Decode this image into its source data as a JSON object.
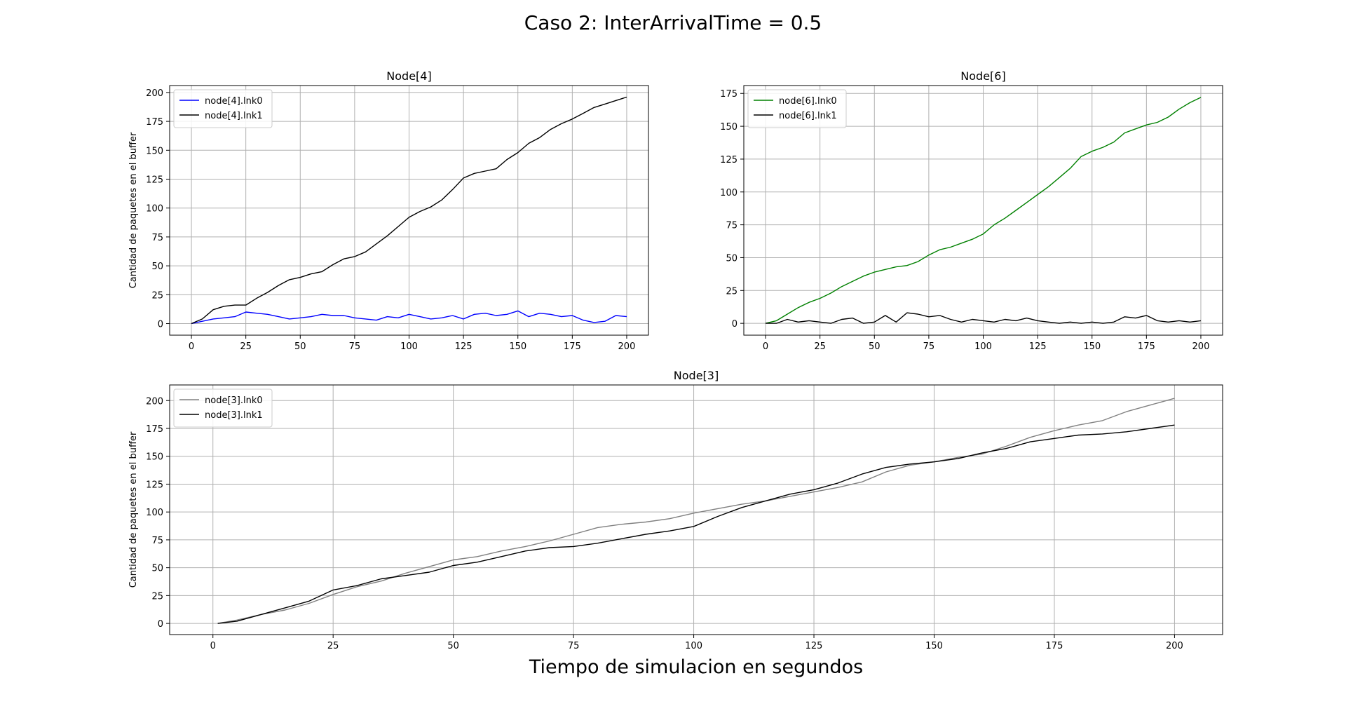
{
  "figure": {
    "suptitle": "Caso 2: InterArrivalTime = 0.5",
    "xlabel": "Tiempo de simulacion en segundos"
  },
  "chart_data": [
    {
      "type": "line",
      "title": "Node[4]",
      "xlabel": "",
      "ylabel": "Cantidad de paquetes en el buffer",
      "xlim": [
        -10,
        210
      ],
      "ylim": [
        -10,
        206
      ],
      "xticks": [
        0,
        25,
        50,
        75,
        100,
        125,
        150,
        175,
        200
      ],
      "yticks": [
        0,
        25,
        50,
        75,
        100,
        125,
        150,
        175,
        200
      ],
      "grid": true,
      "legend": "upper left",
      "series": [
        {
          "name": "node[4].lnk0",
          "color": "#0000ff",
          "x": [
            0,
            5,
            10,
            15,
            20,
            25,
            30,
            35,
            40,
            45,
            50,
            55,
            60,
            65,
            70,
            75,
            80,
            85,
            90,
            95,
            100,
            105,
            110,
            115,
            120,
            125,
            130,
            135,
            140,
            145,
            150,
            155,
            160,
            165,
            170,
            175,
            180,
            185,
            190,
            195,
            200
          ],
          "y": [
            0,
            2,
            4,
            5,
            6,
            10,
            9,
            8,
            6,
            4,
            5,
            6,
            8,
            7,
            7,
            5,
            4,
            3,
            6,
            5,
            8,
            6,
            4,
            5,
            7,
            4,
            8,
            9,
            7,
            8,
            11,
            6,
            9,
            8,
            6,
            7,
            3,
            1,
            2,
            7,
            6
          ]
        },
        {
          "name": "node[4].lnk1",
          "color": "#000000",
          "x": [
            0,
            5,
            10,
            15,
            20,
            25,
            30,
            35,
            40,
            45,
            50,
            55,
            60,
            65,
            70,
            75,
            80,
            85,
            90,
            95,
            100,
            105,
            110,
            115,
            120,
            125,
            130,
            135,
            140,
            145,
            150,
            155,
            160,
            165,
            170,
            175,
            180,
            185,
            190,
            195,
            200
          ],
          "y": [
            0,
            4,
            12,
            15,
            16,
            16,
            22,
            27,
            33,
            38,
            40,
            43,
            45,
            51,
            56,
            58,
            62,
            69,
            76,
            84,
            92,
            97,
            101,
            107,
            116,
            126,
            130,
            132,
            134,
            142,
            148,
            156,
            161,
            168,
            173,
            177,
            182,
            187,
            190,
            193,
            196
          ]
        }
      ]
    },
    {
      "type": "line",
      "title": "Node[6]",
      "xlabel": "",
      "ylabel": "",
      "xlim": [
        -10,
        210
      ],
      "ylim": [
        -9,
        181
      ],
      "xticks": [
        0,
        25,
        50,
        75,
        100,
        125,
        150,
        175,
        200
      ],
      "yticks": [
        0,
        25,
        50,
        75,
        100,
        125,
        150,
        175
      ],
      "grid": true,
      "legend": "upper left",
      "series": [
        {
          "name": "node[6].lnk0",
          "color": "#008000",
          "x": [
            0,
            5,
            10,
            15,
            20,
            25,
            30,
            35,
            40,
            45,
            50,
            55,
            60,
            65,
            70,
            75,
            80,
            85,
            90,
            95,
            100,
            105,
            110,
            115,
            120,
            125,
            130,
            135,
            140,
            145,
            150,
            155,
            160,
            165,
            170,
            175,
            180,
            185,
            190,
            195,
            200
          ],
          "y": [
            0,
            2,
            7,
            12,
            16,
            19,
            23,
            28,
            32,
            36,
            39,
            41,
            43,
            44,
            47,
            52,
            56,
            58,
            61,
            64,
            68,
            75,
            80,
            86,
            92,
            98,
            104,
            111,
            118,
            127,
            131,
            134,
            138,
            145,
            148,
            151,
            153,
            157,
            163,
            168,
            172
          ]
        },
        {
          "name": "node[6].lnk1",
          "color": "#000000",
          "x": [
            0,
            5,
            10,
            15,
            20,
            25,
            30,
            35,
            40,
            45,
            50,
            55,
            60,
            65,
            70,
            75,
            80,
            85,
            90,
            95,
            100,
            105,
            110,
            115,
            120,
            125,
            130,
            135,
            140,
            145,
            150,
            155,
            160,
            165,
            170,
            175,
            180,
            185,
            190,
            195,
            200
          ],
          "y": [
            0,
            0,
            3,
            1,
            2,
            1,
            0,
            3,
            4,
            0,
            1,
            6,
            1,
            8,
            7,
            5,
            6,
            3,
            1,
            3,
            2,
            1,
            3,
            2,
            4,
            2,
            1,
            0,
            1,
            0,
            1,
            0,
            1,
            5,
            4,
            6,
            2,
            1,
            2,
            1,
            2
          ]
        }
      ]
    },
    {
      "type": "line",
      "title": "Node[3]",
      "xlabel": "Tiempo de simulacion en segundos",
      "ylabel": "Cantidad de paquetes en el buffer",
      "xlim": [
        -9,
        210
      ],
      "ylim": [
        -10,
        214
      ],
      "xticks": [
        0,
        25,
        50,
        75,
        100,
        125,
        150,
        175,
        200
      ],
      "yticks": [
        0,
        25,
        50,
        75,
        100,
        125,
        150,
        175,
        200
      ],
      "grid": true,
      "legend": "upper left",
      "series": [
        {
          "name": "node[3].lnk0",
          "color": "#808080",
          "x": [
            1,
            5,
            10,
            15,
            20,
            25,
            30,
            35,
            40,
            45,
            50,
            55,
            60,
            65,
            70,
            75,
            80,
            85,
            90,
            95,
            100,
            105,
            110,
            115,
            120,
            125,
            130,
            135,
            140,
            145,
            150,
            155,
            160,
            165,
            170,
            175,
            180,
            185,
            190,
            195,
            200
          ],
          "y": [
            0,
            3,
            8,
            12,
            18,
            26,
            33,
            38,
            45,
            51,
            57,
            60,
            65,
            69,
            74,
            80,
            86,
            89,
            91,
            94,
            99,
            103,
            107,
            110,
            114,
            118,
            122,
            127,
            136,
            142,
            145,
            149,
            152,
            159,
            167,
            173,
            178,
            182,
            190,
            196,
            202
          ]
        },
        {
          "name": "node[3].lnk1",
          "color": "#000000",
          "x": [
            1,
            5,
            10,
            15,
            20,
            25,
            30,
            35,
            40,
            45,
            50,
            55,
            60,
            65,
            70,
            75,
            80,
            85,
            90,
            95,
            100,
            105,
            110,
            115,
            120,
            125,
            130,
            135,
            140,
            145,
            150,
            155,
            160,
            165,
            170,
            175,
            180,
            185,
            190,
            195,
            200
          ],
          "y": [
            0,
            2,
            8,
            14,
            20,
            30,
            34,
            40,
            43,
            46,
            52,
            55,
            60,
            65,
            68,
            69,
            72,
            76,
            80,
            83,
            87,
            96,
            104,
            110,
            116,
            120,
            126,
            134,
            140,
            143,
            145,
            148,
            153,
            157,
            163,
            166,
            169,
            170,
            172,
            175,
            178
          ]
        }
      ]
    }
  ]
}
